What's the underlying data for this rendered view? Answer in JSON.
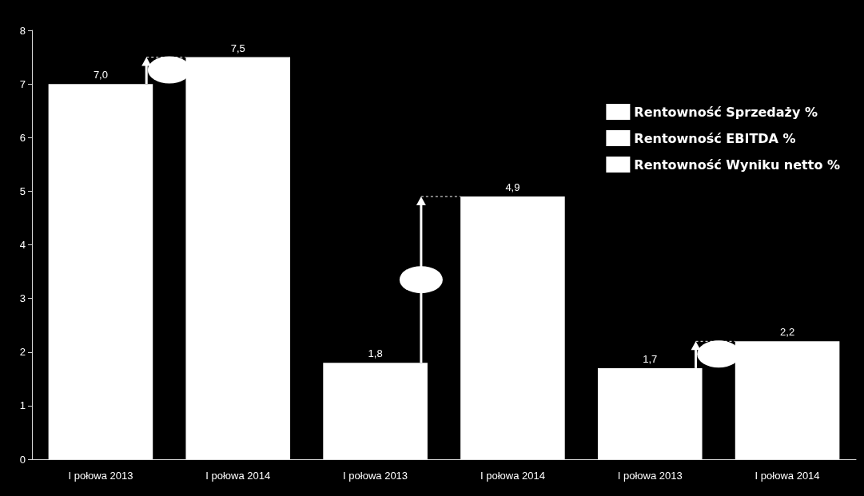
{
  "chart_data": {
    "type": "bar",
    "stacked": true,
    "categories": [
      "I połowa 2013",
      "I połowa 2014",
      "I połowa 2013",
      "I połowa 2014",
      "I połowa 2013",
      "I połowa 2014"
    ],
    "series": [
      {
        "name": "Rentowność Sprzedaży %",
        "color": "#ffffff",
        "values": [
          7.0,
          7.5,
          null,
          null,
          null,
          null
        ],
        "value_labels": [
          "7,0",
          "7,5",
          null,
          null,
          null,
          null
        ]
      },
      {
        "name": "Rentowność EBITDA %",
        "color": "#ffffff",
        "values": [
          null,
          null,
          1.8,
          4.9,
          null,
          null
        ],
        "value_labels": [
          null,
          null,
          "1,8",
          "4,9",
          null,
          null
        ]
      },
      {
        "name": "Rentowność Wyniku netto %",
        "color": "#ffffff",
        "values": [
          null,
          null,
          null,
          null,
          1.7,
          2.2
        ],
        "value_labels": [
          null,
          null,
          null,
          null,
          "1,7",
          "2,2"
        ]
      }
    ],
    "ylim": [
      0,
      8
    ],
    "yticks": [
      0,
      1,
      2,
      3,
      4,
      5,
      6,
      7,
      8
    ],
    "grid": false,
    "legend": "top right"
  }
}
